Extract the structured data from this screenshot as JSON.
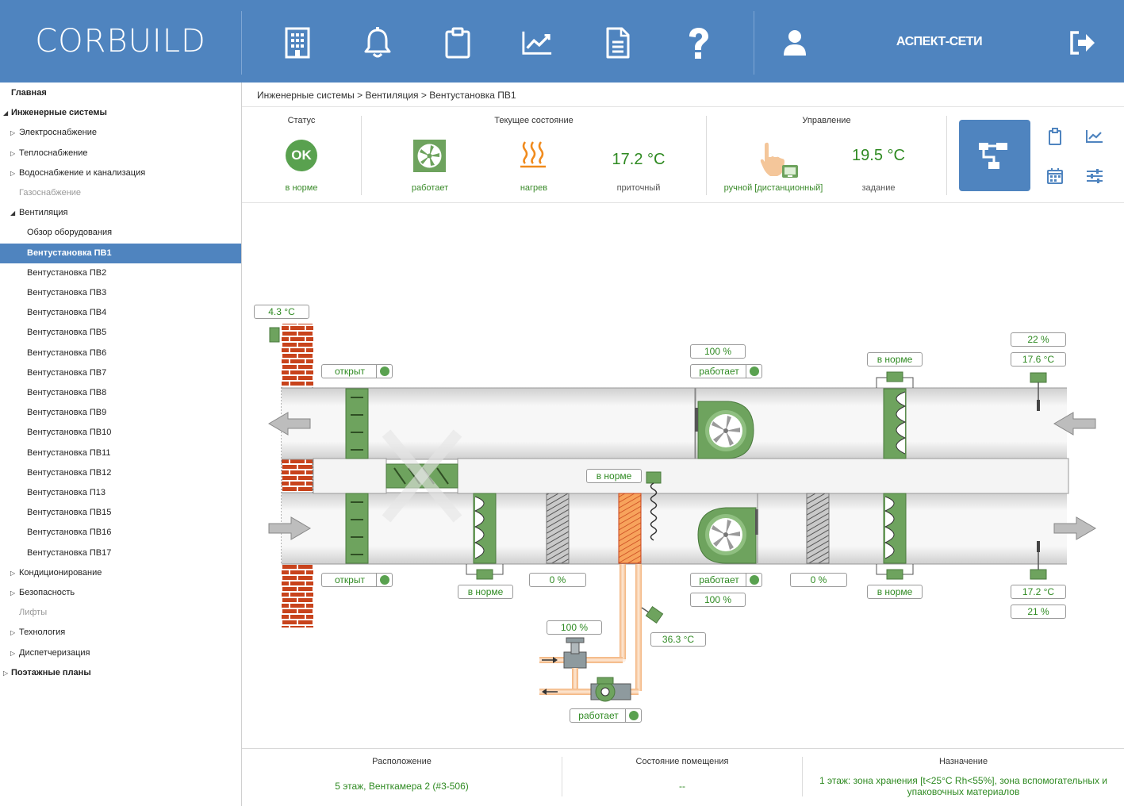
{
  "header": {
    "logo": "CORBUILD",
    "org_name": "АСПЕКТ-СЕТИ",
    "icons": [
      "building-icon",
      "bell-icon",
      "clipboard-icon",
      "chart-icon",
      "document-icon",
      "help-icon",
      "user-icon",
      "logout-icon"
    ]
  },
  "sidebar": {
    "items": [
      {
        "label": "Главная",
        "level": 0
      },
      {
        "label": "Инженерные системы",
        "level": 0,
        "arrow": "▲"
      },
      {
        "label": "Электроснабжение",
        "level": 1,
        "arrow": "▷"
      },
      {
        "label": "Теплоснабжение",
        "level": 1,
        "arrow": "▷"
      },
      {
        "label": "Водоснабжение и канализация",
        "level": 1,
        "arrow": "▷"
      },
      {
        "label": "Газоснабжение",
        "level": 1,
        "muted": true
      },
      {
        "label": "Вентиляция",
        "level": 1,
        "arrow": "▲"
      },
      {
        "label": "Обзор оборудования",
        "level": 2
      },
      {
        "label": "Вентустановка ПВ1",
        "level": 2,
        "active": true
      },
      {
        "label": "Вентустановка ПВ2",
        "level": 2
      },
      {
        "label": "Вентустановка ПВ3",
        "level": 2
      },
      {
        "label": "Вентустановка ПВ4",
        "level": 2
      },
      {
        "label": "Вентустановка ПВ5",
        "level": 2
      },
      {
        "label": "Вентустановка ПВ6",
        "level": 2
      },
      {
        "label": "Вентустановка ПВ7",
        "level": 2
      },
      {
        "label": "Вентустановка ПВ8",
        "level": 2
      },
      {
        "label": "Вентустановка ПВ9",
        "level": 2
      },
      {
        "label": "Вентустановка ПВ10",
        "level": 2
      },
      {
        "label": "Вентустановка ПВ11",
        "level": 2
      },
      {
        "label": "Вентустановка ПВ12",
        "level": 2
      },
      {
        "label": "Вентустановка П13",
        "level": 2
      },
      {
        "label": "Вентустановка ПВ15",
        "level": 2
      },
      {
        "label": "Вентустановка ПВ16",
        "level": 2
      },
      {
        "label": "Вентустановка ПВ17",
        "level": 2
      },
      {
        "label": "Кондиционирование",
        "level": 1,
        "arrow": "▷"
      },
      {
        "label": "Безопасность",
        "level": 1,
        "arrow": "▷"
      },
      {
        "label": "Лифты",
        "level": 1,
        "muted": true
      },
      {
        "label": "Технология",
        "level": 1,
        "arrow": "▷"
      },
      {
        "label": "Диспетчеризация",
        "level": 1,
        "arrow": "▷"
      },
      {
        "label": "Поэтажные планы",
        "level": 0,
        "arrow": "▷"
      }
    ]
  },
  "breadcrumb": "Инженерные системы > Вентиляция > Вентустановка ПВ1",
  "status_panel": {
    "status_label": "Статус",
    "status_badge": "OK",
    "status_value": "в норме",
    "current_label": "Текущее состояние",
    "fan_value": "работает",
    "heat_value": "нагрев",
    "supply_temp": "17.2 °C",
    "supply_label": "приточный",
    "control_label": "Управление",
    "mode_value": "ручной [дистанционный]",
    "setpoint": "19.5 °C",
    "setpoint_label": "задание"
  },
  "diagram": {
    "outdoor_temp": "4.3 °C",
    "damper_top": "открыт",
    "damper_bottom": "открыт",
    "exhaust_fan_speed": "100 %",
    "exhaust_fan_state": "работает",
    "exhaust_filter": "в норме",
    "exhaust_humidity": "22 %",
    "exhaust_temp": "17.6 °C",
    "supply_filter1": "в норме",
    "bypass_pct1": "0 %",
    "heater_status": "в норме",
    "supply_fan_state": "работает",
    "supply_fan_speed": "100 %",
    "bypass_pct2": "0 %",
    "supply_filter2": "в норме",
    "supply_temp": "17.2 °C",
    "supply_humidity": "21 %",
    "valve_pct": "100 %",
    "return_water_temp": "36.3 °C",
    "pump_state": "работает"
  },
  "footer": {
    "location_label": "Расположение",
    "location_value": "5 этаж, Венткамера 2 (#3-506)",
    "room_label": "Состояние помещения",
    "room_value": "--",
    "purpose_label": "Назначение",
    "purpose_line1": "1 этаж: зона хранения [t<25°C Rh<55%], зона вспомогательных и",
    "purpose_line2": "упаковочных материалов"
  }
}
